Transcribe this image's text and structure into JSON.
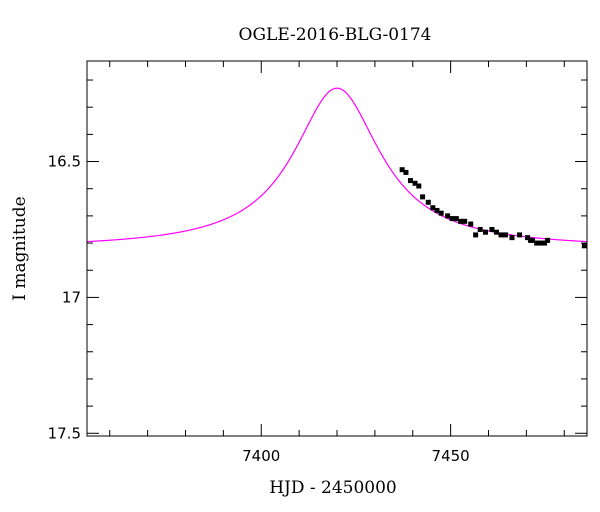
{
  "chart_data": {
    "type": "scatter",
    "title": "OGLE-2016-BLG-0174",
    "xlabel": "HJD - 2450000",
    "ylabel": "I magnitude",
    "xlim": [
      7354,
      7486
    ],
    "ylim": [
      17.51,
      16.13
    ],
    "y_inverted": true,
    "grid": false,
    "x_ticks": [
      7400,
      7450
    ],
    "x_tick_labels": [
      "7400",
      "7450"
    ],
    "y_ticks": [
      16.5,
      17,
      17.5
    ],
    "y_tick_labels": [
      "16.5",
      "17",
      "17.5"
    ],
    "x_minor_step": 10,
    "y_minor_step": 0.1,
    "series": [
      {
        "kind": "model",
        "color": "#ff00ff",
        "model": {
          "t0": 7420,
          "baseline": 16.82,
          "peak": 16.23,
          "tE": 14
        }
      },
      {
        "kind": "data",
        "color": "#000000",
        "x": [
          7437.2,
          7438.2,
          7439.4,
          7440.6,
          7441.6,
          7442.6,
          7444.1,
          7445.3,
          7446.4,
          7447.5,
          7449.2,
          7450.4,
          7451.5,
          7452.6,
          7453.7,
          7455.3,
          7456.6,
          7457.8,
          7459.2,
          7460.9,
          7462.1,
          7463.3,
          7464.5,
          7466.2,
          7468.2,
          7470.3,
          7471.1,
          7471.6,
          7472.7,
          7473.9,
          7474.8,
          7475.6,
          7485.3
        ],
        "y": [
          16.53,
          16.54,
          16.57,
          16.58,
          16.59,
          16.63,
          16.65,
          16.67,
          16.68,
          16.69,
          16.7,
          16.71,
          16.71,
          16.72,
          16.72,
          16.73,
          16.77,
          16.75,
          16.76,
          16.75,
          16.76,
          16.77,
          16.77,
          16.78,
          16.77,
          16.78,
          16.79,
          16.79,
          16.8,
          16.8,
          16.8,
          16.79,
          16.81
        ],
        "err": [
          0.008,
          0.008,
          0.008,
          0.008,
          0.008,
          0.008,
          0.008,
          0.008,
          0.008,
          0.008,
          0.008,
          0.008,
          0.008,
          0.008,
          0.008,
          0.008,
          0.008,
          0.008,
          0.008,
          0.008,
          0.008,
          0.008,
          0.008,
          0.008,
          0.008,
          0.008,
          0.008,
          0.008,
          0.008,
          0.008,
          0.008,
          0.008,
          0.008
        ]
      }
    ]
  }
}
